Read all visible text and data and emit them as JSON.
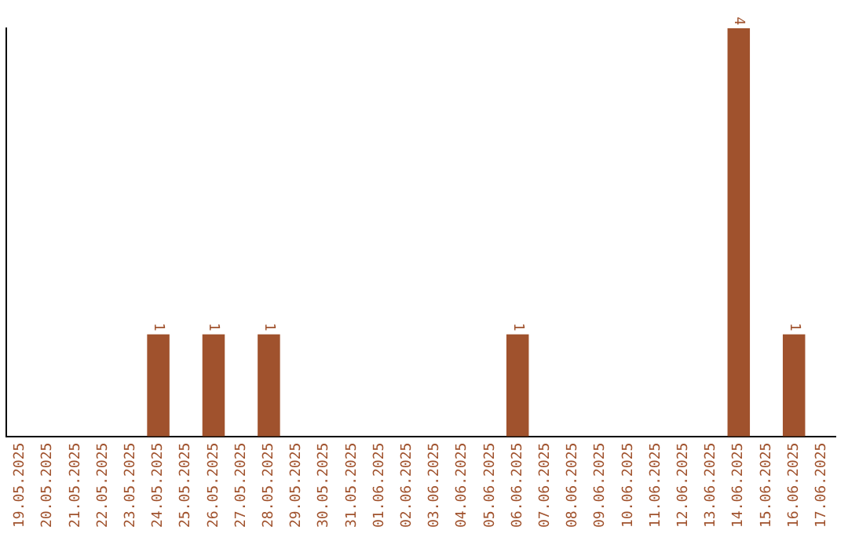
{
  "chart_data": {
    "type": "bar",
    "categories": [
      "19.05.2025",
      "20.05.2025",
      "21.05.2025",
      "22.05.2025",
      "23.05.2025",
      "24.05.2025",
      "25.05.2025",
      "26.05.2025",
      "27.05.2025",
      "28.05.2025",
      "29.05.2025",
      "30.05.2025",
      "31.05.2025",
      "01.06.2025",
      "02.06.2025",
      "03.06.2025",
      "04.06.2025",
      "05.06.2025",
      "06.06.2025",
      "07.06.2025",
      "08.06.2025",
      "09.06.2025",
      "10.06.2025",
      "11.06.2025",
      "12.06.2025",
      "13.06.2025",
      "14.06.2025",
      "15.06.2025",
      "16.06.2025",
      "17.06.2025"
    ],
    "values": [
      0,
      0,
      0,
      0,
      0,
      1,
      0,
      1,
      0,
      1,
      0,
      0,
      0,
      0,
      0,
      0,
      0,
      0,
      1,
      0,
      0,
      0,
      0,
      0,
      0,
      0,
      4,
      0,
      1,
      0
    ],
    "value_labels": [
      null,
      null,
      null,
      null,
      null,
      "1",
      null,
      "1",
      null,
      "1",
      null,
      null,
      null,
      null,
      null,
      null,
      null,
      null,
      "1",
      null,
      null,
      null,
      null,
      null,
      null,
      null,
      "4",
      null,
      "1",
      null
    ],
    "color": "#a0522d",
    "tick_labels": "x",
    "grid": false,
    "legend": false
  }
}
